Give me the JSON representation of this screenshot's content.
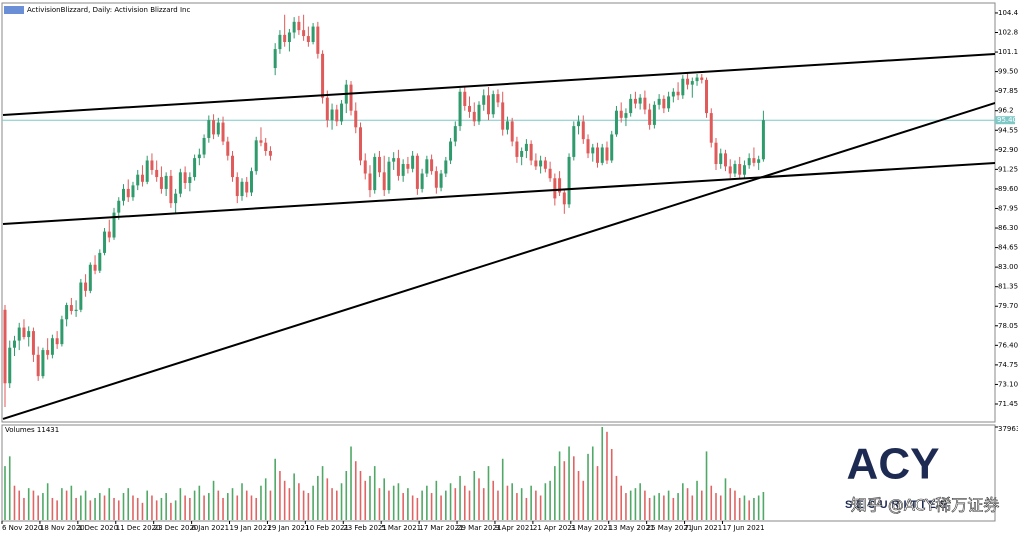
{
  "chart_data": {
    "type": "candlestick",
    "title": "ActivisionBlizzard, Daily:  Activision Blizzard Inc",
    "volume_label": "Volumes 11431",
    "logo_text": "ACY",
    "logo_subtext": "SECURITIES",
    "watermark": "知乎 @ACY稀万证券",
    "up_color": "#2f9a6b",
    "down_color": "#e05a5a",
    "vol_up_color": "#4fa865",
    "vol_down_color": "#e06464",
    "line_color": "#000000",
    "price_line_color": "#7ec8c8",
    "ylim": [
      69.93,
      105.29
    ],
    "yticks": [
      104.45,
      {
        "value": 102.8,
        "label": "102.80"
      },
      101.15,
      {
        "value": 99.5,
        "label": "99.50"
      },
      97.85,
      96.2,
      94.55,
      {
        "value": 92.9,
        "label": "92.90"
      },
      91.25,
      {
        "value": 89.6,
        "label": "89.60"
      },
      87.95,
      {
        "value": 86.3,
        "label": "86.30"
      },
      84.65,
      {
        "value": 83.0,
        "label": "83.00"
      },
      81.35,
      {
        "value": 79.7,
        "label": "79.70"
      },
      78.05,
      {
        "value": 76.4,
        "label": "76.40"
      },
      74.75,
      {
        "value": 73.1,
        "label": "73.10"
      },
      71.45
    ],
    "price_line": {
      "value": 95.4,
      "label": "95.40"
    },
    "vol_ylim": [
      0,
      37963
    ],
    "vol_yticks": [
      37963
    ],
    "categories": [
      "6 Nov 2020",
      null,
      null,
      null,
      null,
      null,
      null,
      null,
      "18 Nov 2020",
      null,
      null,
      null,
      null,
      null,
      null,
      null,
      "1 Dec 2020",
      null,
      null,
      null,
      null,
      null,
      null,
      null,
      "11 Dec 2020",
      null,
      null,
      null,
      null,
      null,
      null,
      null,
      "23 Dec 2020",
      null,
      null,
      null,
      null,
      null,
      null,
      null,
      "6 Jan 2021",
      null,
      null,
      null,
      null,
      null,
      null,
      null,
      "19 Jan 2021",
      null,
      null,
      null,
      null,
      null,
      null,
      null,
      "29 Jan 2021",
      null,
      null,
      null,
      null,
      null,
      null,
      null,
      "10 Feb 2021",
      null,
      null,
      null,
      null,
      null,
      null,
      null,
      "23 Feb 2021",
      null,
      null,
      null,
      null,
      null,
      null,
      null,
      "5 Mar 2021",
      null,
      null,
      null,
      null,
      null,
      null,
      null,
      "17 Mar 2021",
      null,
      null,
      null,
      null,
      null,
      null,
      null,
      "29 Mar 2021",
      null,
      null,
      null,
      null,
      null,
      null,
      null,
      "9 Apr 2021",
      null,
      null,
      null,
      null,
      null,
      null,
      null,
      "21 Apr 2021",
      null,
      null,
      null,
      null,
      null,
      null,
      null,
      "3 May 2021",
      null,
      null,
      null,
      null,
      null,
      null,
      null,
      "13 May 2021",
      null,
      null,
      null,
      null,
      null,
      null,
      null,
      "25 May 2021",
      null,
      null,
      null,
      null,
      null,
      null,
      null,
      "7 Jun 2021",
      null,
      null,
      null,
      null,
      null,
      null,
      null,
      "17 Jun 2021",
      null,
      null,
      null,
      null,
      null,
      null,
      null,
      null
    ],
    "candles": [
      [
        79.4,
        79.8,
        71.2,
        73.2
      ],
      [
        73.2,
        76.8,
        72.8,
        76.2
      ],
      [
        76.2,
        77.2,
        75.5,
        76.8
      ],
      [
        76.8,
        78.3,
        76.0,
        77.9
      ],
      [
        77.9,
        78.6,
        76.9,
        77.1
      ],
      [
        77.1,
        78.0,
        76.3,
        77.6
      ],
      [
        77.6,
        77.9,
        75.0,
        75.6
      ],
      [
        75.6,
        76.3,
        73.4,
        73.8
      ],
      [
        73.8,
        76.2,
        73.6,
        76.0
      ],
      [
        76.0,
        77.0,
        75.2,
        75.6
      ],
      [
        75.6,
        77.3,
        75.3,
        77.0
      ],
      [
        77.0,
        77.6,
        76.1,
        76.5
      ],
      [
        76.5,
        78.9,
        76.3,
        78.6
      ],
      [
        78.6,
        80.0,
        78.0,
        79.8
      ],
      [
        79.8,
        80.4,
        79.0,
        79.3
      ],
      [
        79.3,
        80.2,
        78.8,
        79.4
      ],
      [
        79.4,
        82.0,
        79.2,
        81.7
      ],
      [
        81.7,
        82.4,
        80.5,
        81.0
      ],
      [
        81.0,
        83.4,
        80.8,
        83.2
      ],
      [
        83.2,
        84.0,
        82.4,
        82.7
      ],
      [
        82.7,
        84.5,
        82.5,
        84.2
      ],
      [
        84.2,
        86.3,
        84.0,
        86.0
      ],
      [
        86.0,
        87.0,
        85.1,
        85.5
      ],
      [
        85.5,
        88.0,
        85.3,
        87.6
      ],
      [
        87.6,
        88.9,
        87.0,
        88.6
      ],
      [
        88.6,
        90.0,
        88.2,
        89.6
      ],
      [
        89.6,
        90.4,
        88.5,
        88.9
      ],
      [
        88.9,
        90.2,
        88.6,
        89.9
      ],
      [
        89.9,
        91.2,
        89.5,
        90.8
      ],
      [
        90.8,
        91.6,
        89.8,
        90.2
      ],
      [
        90.2,
        92.4,
        90.0,
        92.0
      ],
      [
        92.0,
        92.6,
        90.8,
        91.2
      ],
      [
        91.2,
        92.0,
        90.2,
        90.6
      ],
      [
        90.6,
        91.5,
        89.2,
        89.6
      ],
      [
        89.6,
        91.0,
        89.0,
        90.7
      ],
      [
        90.7,
        91.2,
        88.0,
        88.4
      ],
      [
        88.4,
        89.6,
        87.6,
        89.2
      ],
      [
        89.2,
        91.3,
        88.9,
        91.0
      ],
      [
        91.0,
        91.5,
        89.6,
        90.1
      ],
      [
        90.1,
        91.0,
        89.4,
        90.6
      ],
      [
        90.6,
        92.5,
        90.3,
        92.2
      ],
      [
        92.2,
        93.0,
        91.6,
        92.5
      ],
      [
        92.5,
        94.2,
        92.2,
        93.9
      ],
      [
        93.9,
        95.8,
        93.5,
        95.4
      ],
      [
        95.4,
        95.9,
        93.8,
        94.2
      ],
      [
        94.2,
        95.6,
        94.0,
        95.2
      ],
      [
        95.2,
        95.7,
        93.3,
        93.6
      ],
      [
        93.6,
        94.0,
        92.0,
        92.4
      ],
      [
        92.4,
        92.8,
        90.2,
        90.6
      ],
      [
        90.6,
        91.0,
        88.4,
        89.0
      ],
      [
        89.0,
        90.5,
        88.6,
        90.2
      ],
      [
        90.2,
        90.6,
        88.9,
        89.3
      ],
      [
        89.3,
        91.4,
        89.0,
        91.1
      ],
      [
        91.1,
        94.0,
        90.8,
        93.7
      ],
      [
        93.7,
        94.8,
        93.2,
        93.5
      ],
      [
        93.5,
        93.9,
        92.4,
        92.8
      ],
      [
        92.8,
        93.2,
        92.0,
        92.4
      ],
      [
        99.8,
        101.9,
        99.2,
        101.4
      ],
      [
        101.4,
        103.0,
        101.0,
        102.6
      ],
      [
        102.6,
        104.3,
        101.6,
        102.0
      ],
      [
        102.0,
        103.1,
        101.2,
        102.8
      ],
      [
        102.8,
        104.1,
        102.3,
        103.7
      ],
      [
        103.7,
        104.2,
        102.6,
        103.0
      ],
      [
        103.0,
        104.3,
        102.1,
        102.5
      ],
      [
        102.5,
        103.3,
        101.6,
        102.0
      ],
      [
        102.0,
        103.6,
        101.8,
        103.3
      ],
      [
        103.3,
        103.7,
        100.6,
        101.0
      ],
      [
        101.0,
        101.3,
        96.8,
        97.3
      ],
      [
        97.3,
        97.9,
        94.8,
        95.4
      ],
      [
        95.4,
        96.8,
        94.6,
        96.3
      ],
      [
        96.3,
        96.7,
        94.9,
        95.3
      ],
      [
        95.3,
        97.1,
        95.0,
        96.8
      ],
      [
        96.8,
        98.8,
        96.0,
        98.4
      ],
      [
        98.4,
        98.7,
        95.8,
        96.2
      ],
      [
        96.2,
        96.9,
        94.3,
        94.8
      ],
      [
        94.8,
        95.2,
        91.6,
        92.0
      ],
      [
        92.0,
        92.6,
        90.4,
        90.9
      ],
      [
        90.9,
        91.6,
        88.9,
        89.5
      ],
      [
        89.5,
        92.6,
        89.2,
        92.3
      ],
      [
        92.3,
        92.8,
        90.6,
        91.0
      ],
      [
        91.0,
        92.4,
        89.0,
        89.5
      ],
      [
        89.5,
        92.3,
        89.2,
        91.9
      ],
      [
        91.9,
        92.7,
        91.2,
        92.2
      ],
      [
        92.2,
        92.9,
        90.3,
        90.7
      ],
      [
        90.7,
        92.1,
        90.2,
        91.7
      ],
      [
        91.7,
        92.3,
        90.9,
        91.3
      ],
      [
        91.3,
        92.8,
        91.0,
        92.4
      ],
      [
        92.4,
        92.6,
        89.1,
        89.6
      ],
      [
        89.6,
        91.3,
        89.3,
        90.9
      ],
      [
        90.9,
        92.4,
        90.6,
        92.1
      ],
      [
        92.1,
        92.5,
        90.8,
        91.1
      ],
      [
        91.1,
        91.5,
        89.2,
        89.7
      ],
      [
        89.7,
        91.2,
        89.4,
        90.9
      ],
      [
        90.9,
        92.3,
        90.6,
        92.0
      ],
      [
        92.0,
        93.9,
        91.7,
        93.6
      ],
      [
        93.6,
        95.3,
        93.2,
        94.9
      ],
      [
        94.9,
        98.1,
        94.5,
        97.8
      ],
      [
        97.8,
        98.3,
        96.2,
        96.6
      ],
      [
        96.6,
        97.4,
        95.6,
        96.1
      ],
      [
        96.1,
        96.9,
        94.9,
        95.3
      ],
      [
        95.3,
        97.0,
        95.0,
        96.7
      ],
      [
        96.7,
        98.0,
        96.2,
        97.5
      ],
      [
        97.5,
        98.2,
        95.4,
        95.9
      ],
      [
        95.9,
        97.9,
        95.6,
        97.6
      ],
      [
        97.6,
        98.0,
        96.5,
        96.9
      ],
      [
        96.9,
        97.8,
        94.1,
        94.6
      ],
      [
        94.6,
        95.7,
        94.2,
        95.3
      ],
      [
        95.3,
        95.6,
        93.2,
        93.6
      ],
      [
        93.6,
        94.0,
        91.8,
        92.3
      ],
      [
        92.3,
        93.1,
        91.6,
        92.8
      ],
      [
        92.8,
        93.8,
        92.2,
        93.4
      ],
      [
        93.4,
        93.7,
        91.6,
        92.0
      ],
      [
        92.0,
        92.6,
        91.2,
        91.5
      ],
      [
        91.5,
        92.4,
        90.9,
        92.0
      ],
      [
        92.0,
        92.3,
        91.0,
        91.3
      ],
      [
        91.3,
        91.9,
        90.2,
        90.5
      ],
      [
        90.5,
        90.9,
        88.2,
        88.8
      ],
      [
        90.5,
        91.1,
        89.0,
        89.3
      ],
      [
        89.3,
        89.6,
        87.5,
        88.3
      ],
      [
        88.3,
        92.6,
        88.0,
        92.3
      ],
      [
        92.3,
        95.3,
        92.0,
        94.9
      ],
      [
        94.9,
        95.8,
        94.2,
        95.3
      ],
      [
        95.3,
        95.8,
        93.4,
        93.8
      ],
      [
        93.8,
        94.2,
        92.2,
        92.6
      ],
      [
        92.6,
        93.4,
        91.9,
        93.1
      ],
      [
        93.1,
        93.5,
        91.4,
        91.8
      ],
      [
        91.8,
        93.4,
        91.6,
        93.1
      ],
      [
        93.1,
        93.6,
        91.7,
        92.0
      ],
      [
        92.0,
        94.5,
        91.8,
        94.2
      ],
      [
        94.2,
        96.6,
        94.0,
        96.2
      ],
      [
        96.2,
        96.9,
        95.2,
        95.6
      ],
      [
        95.6,
        96.4,
        94.9,
        96.0
      ],
      [
        96.0,
        97.6,
        95.7,
        97.2
      ],
      [
        97.2,
        97.8,
        96.4,
        96.8
      ],
      [
        96.8,
        97.6,
        96.3,
        97.3
      ],
      [
        97.3,
        97.9,
        95.9,
        96.3
      ],
      [
        96.3,
        96.8,
        94.6,
        95.0
      ],
      [
        95.0,
        97.0,
        94.7,
        96.7
      ],
      [
        96.7,
        97.6,
        96.3,
        97.2
      ],
      [
        97.2,
        97.5,
        96.0,
        96.4
      ],
      [
        96.4,
        97.8,
        96.1,
        97.4
      ],
      [
        97.4,
        98.1,
        96.9,
        97.8
      ],
      [
        97.8,
        98.6,
        97.1,
        97.5
      ],
      [
        97.5,
        99.2,
        97.2,
        98.9
      ],
      [
        98.9,
        99.4,
        98.0,
        98.4
      ],
      [
        98.4,
        99.0,
        97.3,
        98.7
      ],
      [
        98.7,
        99.3,
        98.3,
        99.0
      ],
      [
        99.0,
        99.3,
        98.5,
        98.8
      ],
      [
        98.8,
        99.0,
        95.6,
        96.0
      ],
      [
        96.0,
        96.4,
        93.1,
        93.5
      ],
      [
        93.5,
        93.9,
        91.2,
        91.7
      ],
      [
        91.7,
        93.0,
        91.3,
        92.6
      ],
      [
        92.6,
        92.9,
        91.1,
        91.5
      ],
      [
        91.5,
        92.1,
        90.5,
        90.9
      ],
      [
        90.9,
        92.0,
        90.6,
        91.7
      ],
      [
        91.7,
        92.3,
        90.4,
        90.8
      ],
      [
        90.8,
        92.0,
        90.5,
        91.6
      ],
      [
        91.6,
        92.6,
        91.3,
        92.2
      ],
      [
        92.2,
        93.1,
        91.5,
        91.8
      ],
      [
        91.8,
        92.4,
        91.2,
        92.1
      ],
      [
        92.1,
        96.2,
        91.9,
        95.4
      ]
    ],
    "volumes": [
      22000,
      26000,
      14000,
      12000,
      9000,
      13000,
      12000,
      10000,
      11000,
      15000,
      9000,
      8000,
      13000,
      12000,
      14000,
      9000,
      10000,
      12000,
      8000,
      9000,
      11000,
      10000,
      13000,
      9000,
      8000,
      11000,
      13000,
      10000,
      9000,
      7000,
      12000,
      10000,
      8000,
      9000,
      11000,
      7000,
      8000,
      13000,
      10000,
      9000,
      12000,
      14000,
      10000,
      11000,
      16000,
      12000,
      9000,
      11000,
      13000,
      10000,
      15000,
      12000,
      10000,
      9000,
      14000,
      17000,
      12000,
      25000,
      20000,
      16000,
      13000,
      19000,
      15000,
      12000,
      11000,
      14000,
      18000,
      22000,
      17000,
      13000,
      12000,
      15000,
      20000,
      30000,
      24000,
      20000,
      16000,
      18000,
      22000,
      13000,
      17000,
      12000,
      14000,
      15000,
      11000,
      13000,
      10000,
      9000,
      12000,
      14000,
      11000,
      16000,
      10000,
      12000,
      15000,
      13000,
      18000,
      14000,
      12000,
      20000,
      17000,
      13000,
      22000,
      16000,
      12000,
      25000,
      14000,
      15000,
      11000,
      13000,
      9000,
      14000,
      12000,
      10000,
      15000,
      16000,
      22000,
      28000,
      24000,
      30000,
      26000,
      20000,
      16000,
      27000,
      30000,
      22000,
      37963,
      36000,
      29000,
      18000,
      14000,
      11000,
      12000,
      13000,
      15000,
      12000,
      9000,
      10000,
      11000,
      10000,
      12000,
      9000,
      11000,
      15000,
      13000,
      10000,
      16000,
      12000,
      28000,
      14000,
      11000,
      10000,
      17000,
      13000,
      12000,
      9000,
      10000,
      8000,
      9000,
      10000,
      11431
    ],
    "trendlines": [
      {
        "x": [
          -0.42,
          208.9
        ],
        "y": [
          95.84,
          100.99
        ]
      },
      {
        "x": [
          -0.42,
          208.9
        ],
        "y": [
          86.64,
          91.79
        ]
      },
      {
        "x": [
          -0.42,
          208.9
        ],
        "y": [
          70.19,
          96.86
        ]
      }
    ]
  }
}
